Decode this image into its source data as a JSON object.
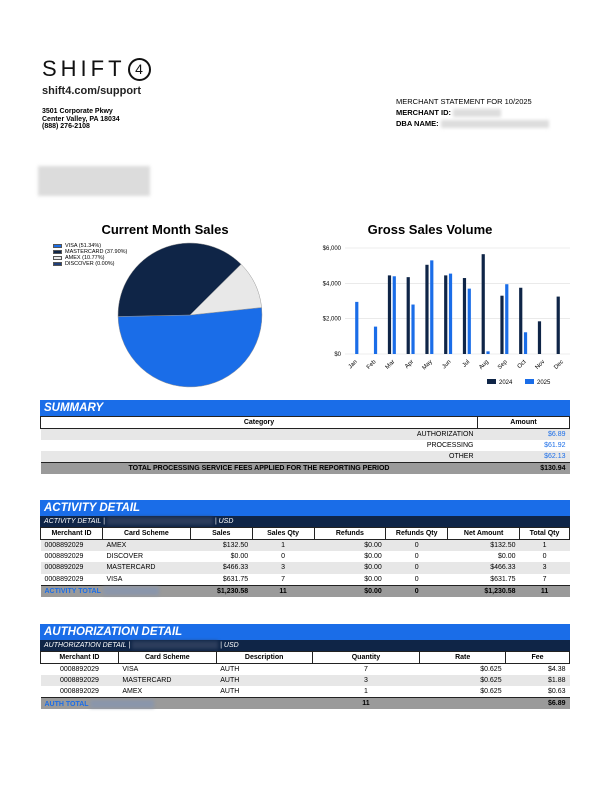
{
  "header": {
    "logo_text": "SHIFT",
    "logo_number": "4",
    "url": "shift4.com/support",
    "address_line1": "3501 Corporate Pkwy",
    "address_line2": "Center Valley, PA 18034",
    "phone": "(888) 276-2108",
    "statement_title": "MERCHANT STATEMENT FOR 10/2025",
    "merchant_id_label": "MERCHANT ID:",
    "dba_label": "DBA NAME:"
  },
  "pie_chart_title": "Current Month Sales",
  "bar_chart_title": "Gross Sales Volume",
  "chart_data": [
    {
      "type": "pie",
      "title": "Current Month Sales",
      "legend": [
        "VISA (51.34%)",
        "MASTERCARD (37.90%)",
        "AMEX (10.77%)",
        "DISCOVER (0.00%)"
      ],
      "labels": [
        "VISA",
        "MASTERCARD",
        "AMEX",
        "DISCOVER"
      ],
      "values": [
        51.34,
        37.9,
        10.77,
        0.0
      ],
      "colors": [
        "#1a6de8",
        "#0f2547",
        "#e8e8e8",
        "#1f3f7a"
      ]
    },
    {
      "type": "bar",
      "title": "Gross Sales Volume",
      "categories": [
        "Jan",
        "Feb",
        "Mar",
        "Apr",
        "May",
        "Jun",
        "Jul",
        "Aug",
        "Sep",
        "Oct",
        "Nov",
        "Dec"
      ],
      "series": [
        {
          "name": "2024",
          "color": "#0f2547",
          "values": [
            0,
            0,
            4450,
            4350,
            5050,
            4450,
            4300,
            5650,
            3300,
            3750,
            1850,
            3250
          ]
        },
        {
          "name": "2025",
          "color": "#1a6de8",
          "values": [
            2950,
            1550,
            4400,
            2800,
            5300,
            4550,
            3700,
            150,
            3950,
            1230,
            0,
            0
          ]
        }
      ],
      "yticks": [
        "$0",
        "$2,000",
        "$4,000",
        "$6,000"
      ],
      "ylim": [
        0,
        6000
      ],
      "legend_position": "bottom-right",
      "grid": true
    }
  ],
  "summary": {
    "title": "SUMMARY",
    "col_category": "Category",
    "col_amount": "Amount",
    "rows": [
      {
        "category": "AUTHORIZATION",
        "amount": "$6.89"
      },
      {
        "category": "PROCESSING",
        "amount": "$61.92"
      },
      {
        "category": "OTHER",
        "amount": "$62.13"
      }
    ],
    "total_label": "TOTAL PROCESSING SERVICE FEES APPLIED FOR THE REPORTING PERIOD",
    "total_amount": "$130.94"
  },
  "activity": {
    "title": "ACTIVITY DETAIL",
    "sub_label": "ACTIVITY DETAIL |",
    "currency": "| USD",
    "headers": [
      "Merchant ID",
      "Card Scheme",
      "Sales",
      "Sales Qty",
      "Refunds",
      "Refunds Qty",
      "Net Amount",
      "Total Qty"
    ],
    "rows": [
      [
        "0008892029",
        "AMEX",
        "$132.50",
        "1",
        "$0.00",
        "0",
        "$132.50",
        "1"
      ],
      [
        "0008892029",
        "DISCOVER",
        "$0.00",
        "0",
        "$0.00",
        "0",
        "$0.00",
        "0"
      ],
      [
        "0008892029",
        "MASTERCARD",
        "$466.33",
        "3",
        "$0.00",
        "0",
        "$466.33",
        "3"
      ],
      [
        "0008892029",
        "VISA",
        "$631.75",
        "7",
        "$0.00",
        "0",
        "$631.75",
        "7"
      ]
    ],
    "total": [
      "ACTIVITY TOTAL",
      "$1,230.58",
      "11",
      "$0.00",
      "0",
      "$1,230.58",
      "11"
    ]
  },
  "authorization": {
    "title": "AUTHORIZATION DETAIL",
    "sub_label": "AUTHORIZATION DETAIL |",
    "currency": "| USD",
    "headers": [
      "Merchant ID",
      "Card Scheme",
      "Description",
      "Quantity",
      "Rate",
      "Fee"
    ],
    "rows": [
      [
        "0008892029",
        "VISA",
        "AUTH",
        "7",
        "$0.625",
        "$4.38"
      ],
      [
        "0008892029",
        "MASTERCARD",
        "AUTH",
        "3",
        "$0.625",
        "$1.88"
      ],
      [
        "0008892029",
        "AMEX",
        "AUTH",
        "1",
        "$0.625",
        "$0.63"
      ]
    ],
    "total": [
      "AUTH TOTAL",
      "11",
      "$6.89"
    ]
  }
}
